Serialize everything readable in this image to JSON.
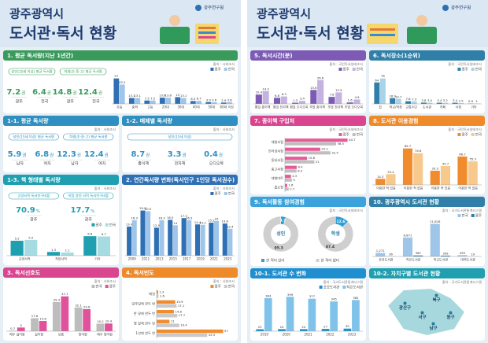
{
  "header": {
    "title_line1": "광주광역시",
    "title_line2": "도서관·독서 현황",
    "org": "광주연구원"
  },
  "sections": [
    {
      "title": "1. 평균 독서량(지난 1년간)",
      "color": "#3a9a5c",
      "source": "출처 : 사회조사",
      "groups": [
        {
          "label": "성인(15세 이상) 평균 독서량",
          "items": [
            {
              "name": "광주",
              "value": 7.2,
              "unit": "권"
            },
            {
              "name": "전국",
              "value": 6.4,
              "unit": "권"
            }
          ]
        },
        {
          "label": "학생(초·중·고) 평균 독서량",
          "items": [
            {
              "name": "광주",
              "value": 14.8,
              "unit": "권"
            },
            {
              "name": "전국",
              "value": 12.4,
              "unit": "권"
            }
          ]
        }
      ],
      "chart": {
        "type": "bar",
        "categories": [
          "초등",
          "중학",
          "고등",
          "20대",
          "30대",
          "40대",
          "50대",
          "60대 이상"
        ],
        "ylim": [
          0,
          60
        ],
        "series": [
          {
            "name": "광주",
            "color": "#2f6fb3",
            "values": [
              57.0,
              13.1,
              7.5,
              13.8,
              15.0,
              6.3,
              3.9,
              2.9
            ]
          },
          {
            "name": "전국",
            "color": "#9fc5e8",
            "values": [
              43.2,
              13.1,
              7.5,
              13.8,
              13.1,
              6.7,
              3.6,
              3.8
            ]
          }
        ]
      }
    },
    {
      "title": "1-1. 평균 독서량",
      "color": "#2f8fc0",
      "source": "출처 : 사회조사",
      "groups": [
        {
          "label": "성인(15세 이상) 평균 독서량",
          "items": [
            {
              "name": "남자",
              "value": 5.9,
              "unit": "권"
            },
            {
              "name": "여자",
              "value": 6.8,
              "unit": "권"
            }
          ]
        },
        {
          "label": "학생(초·중·고) 평균 독서량",
          "items": [
            {
              "name": "남자",
              "value": 12.3,
              "unit": "권"
            },
            {
              "name": "여자",
              "value": 12.4,
              "unit": "권"
            }
          ]
        }
      ]
    },
    {
      "title": "1-2. 매체별 독서량",
      "color": "#2f8fc0",
      "source": "출처 : 사회조사",
      "groups": [
        {
          "label": "성인(15세 이상)",
          "items": [
            {
              "name": "종이책",
              "value": 8.7,
              "unit": "권"
            },
            {
              "name": "전자책",
              "value": 3.3,
              "unit": "권"
            },
            {
              "name": "오디오북",
              "value": 0.4,
              "unit": "권"
            }
          ]
        }
      ]
    },
    {
      "title": "1-3. 책 형태별 독서량",
      "color": "#1f9fb0",
      "source": "출처 : 사회조사",
      "groups": [
        {
          "label": "교양서적 독서인구비율",
          "items": [
            {
              "name": "광주",
              "value": 70.9,
              "unit": "%"
            }
          ]
        },
        {
          "label": "직업 관련 서적 독서인구비율",
          "items": [
            {
              "name": "광주",
              "value": 17.7,
              "unit": "%"
            }
          ]
        }
      ],
      "chart": {
        "type": "bar",
        "categories": [
          "교양서적",
          "직업서적",
          "기타"
        ],
        "ylim": [
          0,
          8
        ],
        "series": [
          {
            "name": "광주",
            "color": "#1f9fb0",
            "values": [
              5.2,
              1.3,
              6.8
            ]
          },
          {
            "name": "전국",
            "color": "#a6dbe2",
            "values": [
              5.5,
              1.1,
              6.7
            ]
          }
        ]
      }
    },
    {
      "title": "2. 연간독서량 변화(독서인구 1인당 독서권수)",
      "color": "#2f6fb3",
      "source": "출처 : 사회조사",
      "chart": {
        "type": "bar",
        "categories": [
          "2009",
          "2011",
          "2013",
          "2015",
          "2017",
          "2019",
          "2021",
          "2023"
        ],
        "ylim": [
          0,
          25
        ],
        "series": [
          {
            "name": "광주",
            "color": "#2f6fb3",
            "values": [
              13.4,
              20.8,
              12.9,
              16.5,
              17.3,
              14.4,
              15.2,
              14.8
            ]
          },
          {
            "name": "전국",
            "color": "#9fc5e8",
            "values": [
              16.3,
              20.5,
              16.3,
              14.0,
              16.3,
              14.2,
              16.0,
              12.4
            ]
          }
        ]
      }
    },
    {
      "title": "3. 독서선호도",
      "color": "#d9468f",
      "source": "출처 : 사회조사",
      "chart": {
        "type": "bar",
        "categories": [
          "매우 싫어함",
          "싫어함",
          "보통",
          "좋아함",
          "매우 좋아함"
        ],
        "ylim": [
          0,
          50
        ],
        "series": [
          {
            "name": "전국",
            "color": "#bdbdbd",
            "values": [
              0.7,
              17.6,
              39.4,
              32.1,
              10.2
            ]
          },
          {
            "name": "광주",
            "color": "#e0529c",
            "values": [
              5.0,
              13.8,
              47.1,
              29.8,
              10.4
            ]
          }
        ]
      }
    },
    {
      "title": "4. 독서빈도",
      "color": "#ef8a2a",
      "source": "출처 : 사회조사",
      "chart": {
        "type": "hbar",
        "categories": [
          "매일",
          "일주일에 한두 번",
          "한 달에 한두 번",
          "몇 달에 한두 번",
          "1년에 한두 번"
        ],
        "xlim": [
          0,
          60
        ],
        "series": [
          {
            "name": "광주",
            "color": "#f08c2e",
            "values": [
              1.3,
              15.9,
              14.8,
              11.0,
              57.0
            ]
          },
          {
            "name": "전국",
            "color": "#c9c9c9",
            "values": [
              1.6,
              17.1,
              17.7,
              19.4,
              43.3
            ]
          }
        ]
      }
    },
    {
      "title": "5. 독서시간(분)",
      "color": "#7d5bb5",
      "source": "출처 : 국민독서실태조사",
      "chart": {
        "type": "bar",
        "categories": [
          "평일 종이책",
          "평일 전자책",
          "평일 오디오북",
          "주말 종이책",
          "주말 전자책",
          "주말 오디오북"
        ],
        "ylim": [
          0,
          30
        ],
        "series": [
          {
            "name": "광주",
            "color": "#7d5bb5",
            "values": [
              10.4,
              6.8,
              1.3,
              15.6,
              7.8,
              1.6
            ]
          },
          {
            "name": "전국",
            "color": "#c4b3e0",
            "values": [
              14.3,
              8.3,
              3.4,
              26.6,
              12.9,
              4.9
            ]
          }
        ]
      }
    },
    {
      "title": "6. 독서장소(1순위)",
      "color": "#2f7fa8",
      "source": "출처 : 국민독서실태조사",
      "chart": {
        "type": "bar",
        "categories": [
          "집",
          "학교/직장",
          "교통수단",
          "도서관",
          "카페",
          "서점",
          "기타"
        ],
        "ylim": [
          0,
          80
        ],
        "series": [
          {
            "name": "광주",
            "color": "#2f7fa8",
            "values": [
              64.0,
              16.9,
              7.8,
              3.8,
              3.4,
              3.4,
              0.9
            ]
          },
          {
            "name": "전국",
            "color": "#a9d3e8",
            "values": [
              76.0,
              14.7,
              7.3,
              3.4,
              3.2,
              2.5,
              1.0
            ]
          }
        ]
      }
    },
    {
      "title": "7. 종이책 구입처",
      "color": "#d9468f",
      "source": "출처 : 국민독서실태조사",
      "chart": {
        "type": "hbar",
        "categories": [
          "대형서점",
          "인터넷서점",
          "동네서점",
          "중고서점",
          "대형마트",
          "홈쇼핑"
        ],
        "xlim": [
          0,
          50
        ],
        "series": [
          {
            "name": "광주",
            "color": "#e65a9a",
            "values": [
              44.7,
              25.2,
              15.8,
              8.4,
              4.3,
              1.6
            ]
          },
          {
            "name": "전국",
            "color": "#bfbfbf",
            "values": [
              36.5,
              32.5,
              21.0,
              8.3,
              5.0,
              2.7
            ]
          }
        ]
      }
    },
    {
      "title": "8. 도서관 이용경험",
      "color": "#ef8a2a",
      "source": "출처 : 국민독서실태조사",
      "chart": {
        "type": "bar",
        "categories": [
          "이용한 적 있음",
          "이용한 적 없음",
          "이용한 적 있음",
          "이용한 적 없음"
        ],
        "ylim": [
          0,
          100
        ],
        "series": [
          {
            "name": "광주",
            "color": "#f08c2e",
            "values": [
              14.3,
              85.7,
              33.3,
              66.7
            ]
          },
          {
            "name": "전국",
            "color": "#f7c98d",
            "values": [
              25.4,
              74.6,
              44.7,
              55.3
            ]
          }
        ]
      }
    },
    {
      "title": "9. 독서활동 참여경험",
      "color": "#3aa3dc",
      "source": "출처 : 국민독서실태조사",
      "chart": {
        "type": "donut",
        "categories": [
          "한 적이 있다",
          "한 적이 없다"
        ],
        "colors": [
          "#2f9fd8",
          "#cfcfcf"
        ],
        "series": [
          {
            "name": "성인",
            "values": [
              4.7,
              95.3
            ]
          },
          {
            "name": "학생",
            "values": [
              12.6,
              87.4
            ]
          }
        ]
      }
    },
    {
      "title": "10. 광주광역시 도서관 현황",
      "color": "#2f7fa8",
      "source": "출처 : 국가도서관통계시스템",
      "chart": {
        "type": "bar",
        "categories": [
          "공공도서관",
          "작은도서관",
          "학교도서관",
          "대학도서관"
        ],
        "ylim": [
          0,
          12000
        ],
        "series": [
          {
            "name": "전국",
            "color": "#9fc5e8",
            "values": [
              1271,
              6871,
              11826,
              495
            ],
            "value_labels": [
              "1,271",
              "6,871",
              "11,826",
              "495"
            ]
          },
          {
            "name": "광주",
            "color": "#2f7fa8",
            "values": [
              36,
              362,
              309,
              19
            ]
          }
        ]
      }
    },
    {
      "title": "10-1. 도서관 수 변화",
      "color": "#1f8fd0",
      "source": "출처 : 국가도서관통계시스템",
      "chart": {
        "type": "bar",
        "categories": [
          "2019",
          "2020",
          "2021",
          "2022",
          "2023"
        ],
        "ylim": [
          0,
          420
        ],
        "series": [
          {
            "name": "공공도서관",
            "color": "#1f8fd0",
            "values": [
              23,
              24,
              24,
              27,
              30
            ]
          },
          {
            "name": "작은도서관",
            "color": "#7fc3ea",
            "values": [
              384,
              399,
              377,
              345,
              362
            ]
          }
        ]
      }
    },
    {
      "title": "10-2. 자치구별 도서관 현황",
      "color": "#1f9fb0",
      "source": "출처 : 국가도서관통계시스템",
      "places": [
        "광산구",
        "북구",
        "서구",
        "동구",
        "남구"
      ]
    }
  ]
}
